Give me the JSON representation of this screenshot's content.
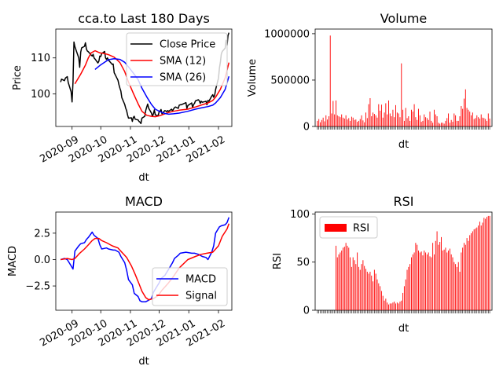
{
  "colors": {
    "close": "#000000",
    "sma12": "#ff0000",
    "sma26": "#0000ff",
    "macd": "#0000ff",
    "signal": "#ff0000",
    "bars": "#ff0000"
  },
  "chart_data": [
    {
      "type": "line",
      "title": "cca.to Last 180 Days",
      "xlabel": "dt",
      "ylabel": "Price",
      "xlim": [
        "2020-08-15",
        "2021-02-15"
      ],
      "ylim": [
        91,
        118
      ],
      "yticks": [
        100,
        110
      ],
      "xticks": [
        "2020-09",
        "2020-10",
        "2020-11",
        "2020-12",
        "2021-01",
        "2021-02"
      ],
      "legend": "top-right",
      "series": [
        {
          "name": "Close Price",
          "color": "#000000",
          "x": [
            "2020-08-20",
            "2020-08-21",
            "2020-08-24",
            "2020-08-25",
            "2020-08-26",
            "2020-08-27",
            "2020-08-28",
            "2020-08-31",
            "2020-09-01",
            "2020-09-02",
            "2020-09-03",
            "2020-09-04",
            "2020-09-08",
            "2020-09-09",
            "2020-09-10",
            "2020-09-11",
            "2020-09-14",
            "2020-09-15",
            "2020-09-16",
            "2020-09-17",
            "2020-09-18",
            "2020-09-21",
            "2020-09-22",
            "2020-09-23",
            "2020-09-24",
            "2020-09-25",
            "2020-09-28",
            "2020-09-29",
            "2020-09-30",
            "2020-10-01",
            "2020-10-02",
            "2020-10-05",
            "2020-10-06",
            "2020-10-07",
            "2020-10-08",
            "2020-10-09",
            "2020-10-13",
            "2020-10-14",
            "2020-10-15",
            "2020-10-16",
            "2020-10-19",
            "2020-10-20",
            "2020-10-21",
            "2020-10-22",
            "2020-10-23",
            "2020-10-26",
            "2020-10-27",
            "2020-10-28",
            "2020-10-29",
            "2020-10-30",
            "2020-11-02",
            "2020-11-03",
            "2020-11-04",
            "2020-11-05",
            "2020-11-06",
            "2020-11-09",
            "2020-11-10",
            "2020-11-11",
            "2020-11-12",
            "2020-11-13",
            "2020-11-16",
            "2020-11-17",
            "2020-11-18",
            "2020-11-19",
            "2020-11-20",
            "2020-11-23",
            "2020-11-24",
            "2020-11-25",
            "2020-11-26",
            "2020-11-27",
            "2020-11-30",
            "2020-12-01",
            "2020-12-02",
            "2020-12-03",
            "2020-12-04",
            "2020-12-07",
            "2020-12-08",
            "2020-12-09",
            "2020-12-10",
            "2020-12-11",
            "2020-12-14",
            "2020-12-15",
            "2020-12-16",
            "2020-12-17",
            "2020-12-18",
            "2020-12-21",
            "2020-12-22",
            "2020-12-23",
            "2020-12-24",
            "2020-12-29",
            "2020-12-30",
            "2020-12-31",
            "2021-01-04",
            "2021-01-05",
            "2021-01-06",
            "2021-01-07",
            "2021-01-08",
            "2021-01-11",
            "2021-01-12",
            "2021-01-13",
            "2021-01-14",
            "2021-01-15",
            "2021-01-18",
            "2021-01-19",
            "2021-01-20",
            "2021-01-21",
            "2021-01-22",
            "2021-01-25",
            "2021-01-26",
            "2021-01-27",
            "2021-01-28",
            "2021-01-29",
            "2021-02-01",
            "2021-02-02",
            "2021-02-03",
            "2021-02-04",
            "2021-02-05",
            "2021-02-08",
            "2021-02-09",
            "2021-02-10",
            "2021-02-11",
            "2021-02-12"
          ],
          "y": [
            103.3,
            104.1,
            103.7,
            104.4,
            104.6,
            104.8,
            103.2,
            100.6,
            97.8,
            103.4,
            114.4,
            113.1,
            110.0,
            107.4,
            111.6,
            112.8,
            113.2,
            114.2,
            112.4,
            111.9,
            111.7,
            110.8,
            110.5,
            111.0,
            110.0,
            109.7,
            108.6,
            109.1,
            110.5,
            110.4,
            111.2,
            111.8,
            110.0,
            109.6,
            110.0,
            109.4,
            108.2,
            108.3,
            105.9,
            105.4,
            103.8,
            102.6,
            101.6,
            100.8,
            99.0,
            97.1,
            96.1,
            95.4,
            94.2,
            93.3,
            93.4,
            92.4,
            93.5,
            93.8,
            93.0,
            92.8,
            92.4,
            92.2,
            91.8,
            93.3,
            93.8,
            95.4,
            96.4,
            97.2,
            96.1,
            94.7,
            93.8,
            94.5,
            95.6,
            94.2,
            94.0,
            95.1,
            95.3,
            95.7,
            94.5,
            95.4,
            95.3,
            95.1,
            95.4,
            95.2,
            95.8,
            95.3,
            95.8,
            96.2,
            96.4,
            96.0,
            96.9,
            97.0,
            97.0,
            97.6,
            96.0,
            96.8,
            97.5,
            96.2,
            97.1,
            97.4,
            98.1,
            98.4,
            98.1,
            97.4,
            98.0,
            97.7,
            97.9,
            98.0,
            97.0,
            98.2,
            98.0,
            99.4,
            99.8,
            99.1,
            99.6,
            101.2,
            104.4,
            107.2,
            108.8,
            111.1,
            111.8,
            112.7,
            114.9,
            113.5,
            116.2,
            117.0
          ]
        },
        {
          "name": "SMA (12)",
          "color": "#ff0000",
          "x": [
            "2020-09-04",
            "2020-09-10",
            "2020-09-15",
            "2020-09-18",
            "2020-09-21",
            "2020-09-25",
            "2020-09-30",
            "2020-10-05",
            "2020-10-09",
            "2020-10-15",
            "2020-10-21",
            "2020-10-26",
            "2020-10-30",
            "2020-11-04",
            "2020-11-09",
            "2020-11-13",
            "2020-11-18",
            "2020-11-23",
            "2020-11-27",
            "2020-12-02",
            "2020-12-07",
            "2020-12-11",
            "2020-12-16",
            "2020-12-22",
            "2020-12-31",
            "2021-01-08",
            "2021-01-15",
            "2021-01-21",
            "2021-01-26",
            "2021-01-29",
            "2021-02-03",
            "2021-02-08",
            "2021-02-12"
          ],
          "y": [
            102.8,
            105.5,
            108.0,
            110.0,
            111.4,
            112.0,
            111.4,
            111.2,
            110.9,
            110.2,
            108.7,
            106.2,
            103.3,
            100.2,
            97.3,
            95.2,
            94.1,
            93.8,
            93.7,
            94.0,
            94.5,
            94.9,
            95.2,
            95.5,
            95.8,
            96.4,
            97.0,
            97.5,
            98.2,
            99.1,
            101.3,
            104.5,
            108.7
          ]
        },
        {
          "name": "SMA (26)",
          "color": "#0000ff",
          "x": [
            "2020-09-25",
            "2020-09-30",
            "2020-10-05",
            "2020-10-09",
            "2020-10-15",
            "2020-10-21",
            "2020-10-26",
            "2020-10-30",
            "2020-11-04",
            "2020-11-09",
            "2020-11-13",
            "2020-11-18",
            "2020-11-23",
            "2020-11-27",
            "2020-12-02",
            "2020-12-07",
            "2020-12-11",
            "2020-12-16",
            "2020-12-22",
            "2020-12-31",
            "2021-01-08",
            "2021-01-15",
            "2021-01-21",
            "2021-01-26",
            "2021-01-29",
            "2021-02-03",
            "2021-02-08",
            "2021-02-12"
          ],
          "y": [
            106.8,
            107.9,
            108.8,
            109.5,
            109.8,
            109.6,
            108.8,
            107.5,
            105.8,
            104.0,
            101.6,
            99.2,
            97.1,
            95.8,
            95.1,
            94.6,
            94.4,
            94.5,
            94.7,
            95.2,
            95.8,
            96.2,
            96.5,
            96.9,
            97.5,
            99.0,
            101.3,
            104.9
          ]
        }
      ]
    },
    {
      "type": "bar",
      "title": "Volume",
      "xlabel": "dt",
      "ylabel": "Volume",
      "ylim": [
        0,
        1050000
      ],
      "yticks": [
        0,
        500000,
        1000000
      ],
      "values": [
        60000,
        80000,
        45000,
        70000,
        95000,
        55000,
        120000,
        75000,
        110000,
        980000,
        140000,
        275000,
        130000,
        280000,
        120000,
        110000,
        100000,
        130000,
        95000,
        85000,
        120000,
        75000,
        90000,
        60000,
        105000,
        95000,
        70000,
        75000,
        50000,
        60000,
        80000,
        120000,
        65000,
        45000,
        150000,
        90000,
        240000,
        305000,
        110000,
        150000,
        135000,
        120000,
        95000,
        240000,
        170000,
        235000,
        95000,
        150000,
        250000,
        130000,
        280000,
        140000,
        110000,
        180000,
        100000,
        230000,
        150000,
        140000,
        100000,
        680000,
        180000,
        60000,
        200000,
        90000,
        110000,
        60000,
        180000,
        160000,
        240000,
        100000,
        70000,
        190000,
        120000,
        50000,
        60000,
        130000,
        100000,
        90000,
        70000,
        160000,
        60000,
        40000,
        180000,
        130000,
        110000,
        40000,
        30000,
        40000,
        40000,
        30000,
        60000,
        90000,
        140000,
        40000,
        70000,
        50000,
        140000,
        120000,
        60000,
        60000,
        110000,
        220000,
        190000,
        300000,
        400000,
        200000,
        180000,
        160000,
        120000,
        150000,
        80000,
        90000,
        120000,
        100000,
        85000,
        130000,
        95000,
        90000,
        80000,
        60000,
        140000,
        85000
      ]
    },
    {
      "type": "line",
      "title": "MACD",
      "xlabel": "dt",
      "ylabel": "MACD",
      "xlim": [
        "2020-08-15",
        "2021-02-15"
      ],
      "ylim": [
        -4.8,
        4.5
      ],
      "yticks": [
        -2.5,
        0.0,
        2.5
      ],
      "xticks": [
        "2020-09",
        "2020-10",
        "2020-11",
        "2020-12",
        "2021-01",
        "2021-02"
      ],
      "legend": "bottom-right",
      "series": [
        {
          "name": "MACD",
          "color": "#0000ff",
          "x": [
            "2020-08-20",
            "2020-08-24",
            "2020-08-27",
            "2020-08-31",
            "2020-09-02",
            "2020-09-04",
            "2020-09-08",
            "2020-09-10",
            "2020-09-14",
            "2020-09-16",
            "2020-09-18",
            "2020-09-22",
            "2020-09-24",
            "2020-09-28",
            "2020-09-30",
            "2020-10-02",
            "2020-10-07",
            "2020-10-09",
            "2020-10-14",
            "2020-10-16",
            "2020-10-20",
            "2020-10-22",
            "2020-10-26",
            "2020-10-28",
            "2020-10-30",
            "2020-11-03",
            "2020-11-05",
            "2020-11-09",
            "2020-11-11",
            "2020-11-13",
            "2020-11-17",
            "2020-11-19",
            "2020-11-23",
            "2020-11-25",
            "2020-11-27",
            "2020-12-01",
            "2020-12-03",
            "2020-12-07",
            "2020-12-09",
            "2020-12-11",
            "2020-12-15",
            "2020-12-17",
            "2020-12-21",
            "2020-12-23",
            "2020-12-29",
            "2021-01-04",
            "2021-01-07",
            "2021-01-11",
            "2021-01-13",
            "2021-01-15",
            "2021-01-19",
            "2021-01-21",
            "2021-01-25",
            "2021-01-27",
            "2021-01-29",
            "2021-02-02",
            "2021-02-04",
            "2021-02-08",
            "2021-02-10",
            "2021-02-12"
          ],
          "y": [
            0.0,
            0.1,
            0.0,
            -0.6,
            -0.9,
            0.8,
            1.3,
            1.5,
            1.6,
            1.9,
            2.1,
            2.6,
            2.3,
            2.0,
            1.4,
            1.0,
            1.1,
            1.0,
            0.9,
            0.9,
            0.7,
            0.3,
            -0.3,
            -1.0,
            -1.9,
            -2.4,
            -3.2,
            -3.5,
            -3.9,
            -4.0,
            -4.0,
            -3.9,
            -3.7,
            -3.1,
            -2.8,
            -2.2,
            -1.8,
            -1.5,
            -1.2,
            -0.9,
            -0.3,
            0.1,
            0.4,
            0.6,
            0.7,
            0.6,
            0.6,
            0.5,
            0.4,
            0.3,
            0.2,
            0.0,
            0.7,
            1.3,
            2.5,
            3.1,
            3.2,
            3.3,
            3.5,
            4.0
          ]
        },
        {
          "name": "Signal",
          "color": "#ff0000",
          "x": [
            "2020-08-20",
            "2020-08-27",
            "2020-09-01",
            "2020-09-04",
            "2020-09-09",
            "2020-09-14",
            "2020-09-18",
            "2020-09-22",
            "2020-09-25",
            "2020-09-29",
            "2020-10-02",
            "2020-10-07",
            "2020-10-13",
            "2020-10-19",
            "2020-10-23",
            "2020-10-28",
            "2020-11-02",
            "2020-11-06",
            "2020-11-10",
            "2020-11-13",
            "2020-11-17",
            "2020-11-20",
            "2020-11-25",
            "2020-11-30",
            "2020-12-04",
            "2020-12-10",
            "2020-12-16",
            "2020-12-22",
            "2020-12-31",
            "2021-01-08",
            "2021-01-14",
            "2021-01-20",
            "2021-01-26",
            "2021-02-01",
            "2021-02-05",
            "2021-02-10",
            "2021-02-12"
          ],
          "y": [
            0.0,
            0.1,
            0.0,
            0.1,
            0.6,
            1.0,
            1.4,
            1.8,
            2.0,
            2.0,
            1.8,
            1.6,
            1.3,
            1.1,
            0.7,
            0.2,
            -0.6,
            -1.4,
            -2.3,
            -3.0,
            -3.6,
            -3.8,
            -3.7,
            -3.4,
            -2.9,
            -2.3,
            -1.6,
            -0.8,
            0.0,
            0.3,
            0.5,
            0.6,
            0.7,
            1.3,
            2.2,
            2.9,
            3.4
          ]
        }
      ]
    },
    {
      "type": "bar",
      "title": "RSI",
      "xlabel": "dt",
      "ylabel": "RSI",
      "ylim": [
        0,
        102
      ],
      "yticks": [
        0,
        50,
        100
      ],
      "legend": "top-left",
      "series": [
        {
          "name": "RSI",
          "color": "#ff0000"
        }
      ],
      "values": [
        0,
        0,
        0,
        0,
        0,
        0,
        0,
        0,
        0,
        0,
        0,
        0,
        0,
        67,
        55,
        58,
        60,
        62,
        65,
        66,
        70,
        67,
        65,
        55,
        45,
        55,
        52,
        48,
        60,
        45,
        42,
        48,
        52,
        46,
        43,
        40,
        38,
        40,
        36,
        30,
        42,
        38,
        32,
        28,
        25,
        20,
        15,
        10,
        12,
        8,
        6,
        7,
        7,
        8,
        9,
        7,
        8,
        7,
        9,
        10,
        18,
        25,
        32,
        42,
        45,
        48,
        55,
        58,
        60,
        70,
        68,
        62,
        60,
        61,
        57,
        62,
        60,
        58,
        60,
        56,
        55,
        70,
        58,
        72,
        82,
        68,
        71,
        76,
        62,
        63,
        65,
        60,
        62,
        64,
        58,
        55,
        50,
        48,
        45,
        50,
        40,
        60,
        65,
        70,
        68,
        75,
        72,
        78,
        80,
        82,
        84,
        85,
        86,
        88,
        92,
        88,
        91,
        96,
        95,
        97,
        98,
        98
      ]
    }
  ]
}
